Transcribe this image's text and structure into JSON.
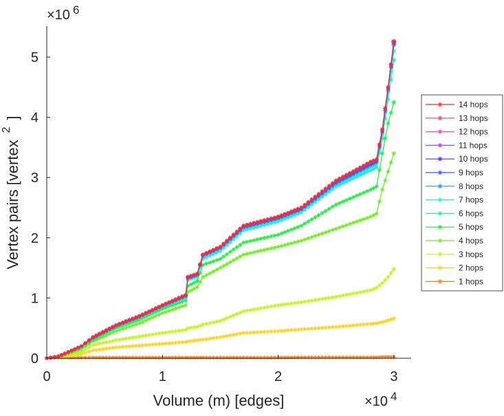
{
  "chart_data": {
    "type": "line",
    "title": "",
    "xlabel": "Volume (m) [edges]",
    "ylabel": "Vertex pairs [vertex",
    "ylabel_superscript": "2",
    "ylabel_close": "]",
    "x_multiplier": {
      "base": "×10",
      "exp": "4"
    },
    "y_multiplier": {
      "base": "×10",
      "exp": "6"
    },
    "xlim": [
      0,
      3.15
    ],
    "ylim": [
      0,
      5.5
    ],
    "xticks": [
      0,
      1,
      2,
      3
    ],
    "xtick_labels": [
      "0",
      "1",
      "2",
      "3"
    ],
    "yticks": [
      0,
      1,
      2,
      3,
      4,
      5
    ],
    "ytick_labels": [
      "0",
      "1",
      "2",
      "3",
      "4",
      "5"
    ],
    "grid": false,
    "legend_position": "right-outside",
    "x": [
      0,
      0.1,
      0.3,
      0.4,
      0.6,
      0.8,
      1.0,
      1.2,
      1.22,
      1.3,
      1.35,
      1.5,
      1.7,
      2.0,
      2.2,
      2.5,
      2.8,
      2.85,
      2.9,
      2.95,
      3.0
    ],
    "series": [
      {
        "name": "1 hops",
        "color": "#ff7f1e",
        "values": [
          0,
          0.01,
          0.01,
          0.01,
          0.01,
          0.01,
          0.01,
          0.01,
          0.01,
          0.01,
          0.01,
          0.01,
          0.01,
          0.01,
          0.015,
          0.015,
          0.015,
          0.015,
          0.02,
          0.02,
          0.02
        ]
      },
      {
        "name": "2 hops",
        "color": "#ffd21e",
        "values": [
          0,
          0.01,
          0.07,
          0.13,
          0.18,
          0.21,
          0.24,
          0.27,
          0.28,
          0.3,
          0.31,
          0.35,
          0.42,
          0.45,
          0.48,
          0.52,
          0.57,
          0.58,
          0.6,
          0.63,
          0.66
        ]
      },
      {
        "name": "3 hops",
        "color": "#c3f51e",
        "values": [
          0,
          0.02,
          0.1,
          0.22,
          0.3,
          0.36,
          0.42,
          0.47,
          0.5,
          0.52,
          0.56,
          0.62,
          0.78,
          0.88,
          0.93,
          1.02,
          1.13,
          1.17,
          1.25,
          1.35,
          1.48
        ]
      },
      {
        "name": "4 hops",
        "color": "#6ef01e",
        "values": [
          0,
          0.02,
          0.15,
          0.28,
          0.45,
          0.58,
          0.75,
          0.88,
          1.1,
          1.18,
          1.35,
          1.5,
          1.72,
          1.85,
          1.95,
          2.15,
          2.35,
          2.4,
          2.8,
          3.1,
          3.4
        ]
      },
      {
        "name": "5 hops",
        "color": "#1ef03c",
        "values": [
          0,
          0.03,
          0.18,
          0.31,
          0.5,
          0.64,
          0.82,
          0.96,
          1.2,
          1.28,
          1.55,
          1.65,
          1.92,
          2.05,
          2.2,
          2.55,
          2.8,
          2.85,
          3.4,
          3.9,
          4.25
        ]
      },
      {
        "name": "6 hops",
        "color": "#1ef0a5",
        "values": [
          0,
          0.03,
          0.19,
          0.33,
          0.52,
          0.67,
          0.85,
          1.0,
          1.3,
          1.35,
          1.65,
          1.78,
          2.12,
          2.27,
          2.42,
          2.85,
          3.12,
          3.17,
          3.65,
          4.3,
          4.95
        ]
      },
      {
        "name": "7 hops",
        "color": "#1ef0f0",
        "values": [
          0,
          0.03,
          0.19,
          0.33,
          0.53,
          0.68,
          0.86,
          1.01,
          1.31,
          1.36,
          1.67,
          1.8,
          2.14,
          2.29,
          2.44,
          2.87,
          3.16,
          3.21,
          3.72,
          4.42,
          5.1
        ]
      },
      {
        "name": "8 hops",
        "color": "#1e9bff",
        "values": [
          0,
          0.03,
          0.2,
          0.34,
          0.54,
          0.69,
          0.87,
          1.03,
          1.33,
          1.38,
          1.7,
          1.83,
          2.17,
          2.32,
          2.47,
          2.9,
          3.2,
          3.25,
          3.75,
          4.45,
          5.2
        ]
      },
      {
        "name": "9 hops",
        "color": "#2d5aff",
        "values": [
          0,
          0.03,
          0.2,
          0.34,
          0.54,
          0.69,
          0.87,
          1.04,
          1.34,
          1.39,
          1.71,
          1.84,
          2.18,
          2.33,
          2.48,
          2.92,
          3.22,
          3.27,
          3.77,
          4.47,
          5.22
        ]
      },
      {
        "name": "10 hops",
        "color": "#5a2dff",
        "values": [
          0,
          0.03,
          0.2,
          0.35,
          0.55,
          0.7,
          0.88,
          1.05,
          1.35,
          1.4,
          1.72,
          1.85,
          2.2,
          2.35,
          2.5,
          2.95,
          3.25,
          3.3,
          3.8,
          4.5,
          5.25
        ]
      },
      {
        "name": "11 hops",
        "color": "#b43cff",
        "values": [
          0,
          0.03,
          0.2,
          0.35,
          0.55,
          0.7,
          0.88,
          1.05,
          1.35,
          1.4,
          1.72,
          1.85,
          2.2,
          2.35,
          2.5,
          2.95,
          3.26,
          3.3,
          3.8,
          4.5,
          5.26
        ]
      },
      {
        "name": "12 hops",
        "color": "#ff3cdc",
        "values": [
          0,
          0.03,
          0.2,
          0.35,
          0.55,
          0.7,
          0.88,
          1.05,
          1.35,
          1.4,
          1.72,
          1.85,
          2.2,
          2.35,
          2.5,
          2.95,
          3.26,
          3.3,
          3.8,
          4.5,
          5.26
        ]
      },
      {
        "name": "13 hops",
        "color": "#ff3c8c",
        "values": [
          0,
          0.03,
          0.2,
          0.35,
          0.55,
          0.7,
          0.88,
          1.05,
          1.35,
          1.4,
          1.72,
          1.85,
          2.2,
          2.35,
          2.5,
          2.95,
          3.26,
          3.3,
          3.8,
          4.5,
          5.26
        ]
      },
      {
        "name": "14 hops",
        "color": "#ff2828",
        "values": [
          0,
          0.03,
          0.2,
          0.35,
          0.55,
          0.7,
          0.88,
          1.05,
          1.35,
          1.4,
          1.72,
          1.85,
          2.2,
          2.35,
          2.5,
          2.95,
          3.26,
          3.3,
          3.8,
          4.5,
          5.26
        ]
      }
    ]
  }
}
